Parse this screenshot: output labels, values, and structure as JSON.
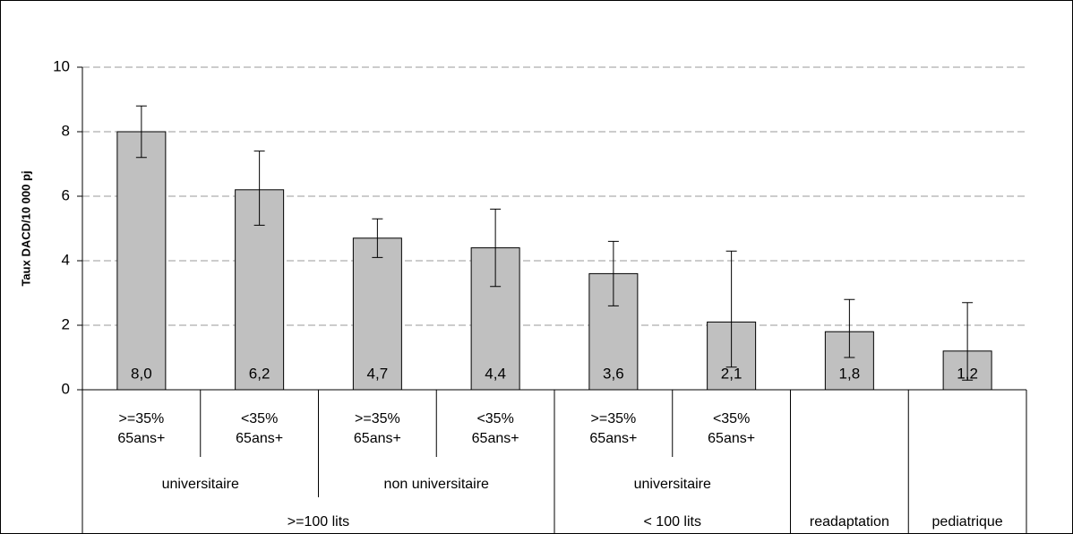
{
  "chart_data": {
    "type": "bar",
    "y_label": "Taux DACD/10 000 pj",
    "categories": [
      [
        ">=35%",
        "65ans+"
      ],
      [
        "<35%",
        "65ans+"
      ],
      [
        ">=35%",
        "65ans+"
      ],
      [
        "<35%",
        "65ans+"
      ],
      [
        ">=35%",
        "65ans+"
      ],
      [
        "<35%",
        "65ans+"
      ],
      null,
      null
    ],
    "subgroups": [
      "universitaire",
      "universitaire",
      "non universitaire",
      "non universitaire",
      "universitaire",
      "universitaire",
      null,
      null
    ],
    "groups": [
      ">=100 lits",
      ">=100 lits",
      ">=100 lits",
      ">=100 lits",
      "< 100 lits",
      "< 100 lits",
      "readaptation",
      "pediatrique"
    ],
    "values": [
      8.0,
      6.2,
      4.7,
      4.4,
      3.6,
      2.1,
      1.8,
      1.2
    ],
    "value_labels": [
      "8,0",
      "6,2",
      "4,7",
      "4,4",
      "3,6",
      "2,1",
      "1,8",
      "1,2"
    ],
    "ci_low": [
      7.2,
      5.1,
      4.1,
      3.2,
      2.6,
      0.7,
      1.0,
      0.3
    ],
    "ci_high": [
      8.8,
      7.4,
      5.3,
      5.6,
      4.6,
      4.3,
      2.8,
      2.7
    ],
    "color": "#c0c0c0",
    "ylim": [
      0,
      10
    ],
    "yticks": [
      0,
      2,
      4,
      6,
      8,
      10
    ],
    "grid": true
  }
}
